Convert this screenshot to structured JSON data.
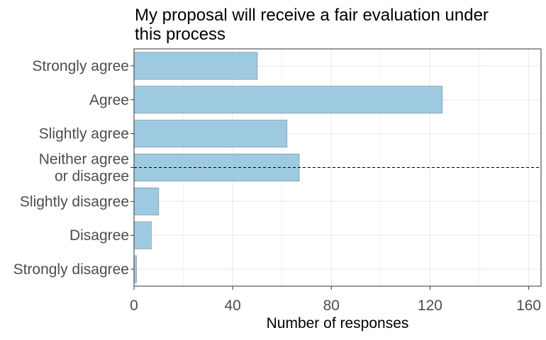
{
  "chart_data": {
    "type": "bar",
    "orientation": "horizontal",
    "title_lines": [
      "My proposal will receive a fair evaluation under",
      "this process"
    ],
    "xlabel": "Number of responses",
    "ylabel": "",
    "categories": [
      [
        "Strongly agree"
      ],
      [
        "Agree"
      ],
      [
        "Slightly agree"
      ],
      [
        "Neither agree",
        "or disagree"
      ],
      [
        "Slightly disagree"
      ],
      [
        "Disagree"
      ],
      [
        "Strongly disagree"
      ]
    ],
    "values": [
      50,
      125,
      62,
      67,
      10,
      7,
      1
    ],
    "xlim": [
      0,
      165
    ],
    "xticks": [
      0,
      40,
      80,
      120,
      160
    ],
    "xtick_labels": [
      "0",
      "40",
      "80",
      "120",
      "160"
    ],
    "grid": true,
    "reference_line": {
      "category_index": 3,
      "style": "dashed"
    },
    "colors": {
      "bar_fill": "#9ecae1",
      "bar_stroke": "#8a9ba6",
      "grid": "#ebebeb",
      "axis_text": "#4d4d4d",
      "title_text": "#000000",
      "panel_border": "#333333"
    }
  }
}
